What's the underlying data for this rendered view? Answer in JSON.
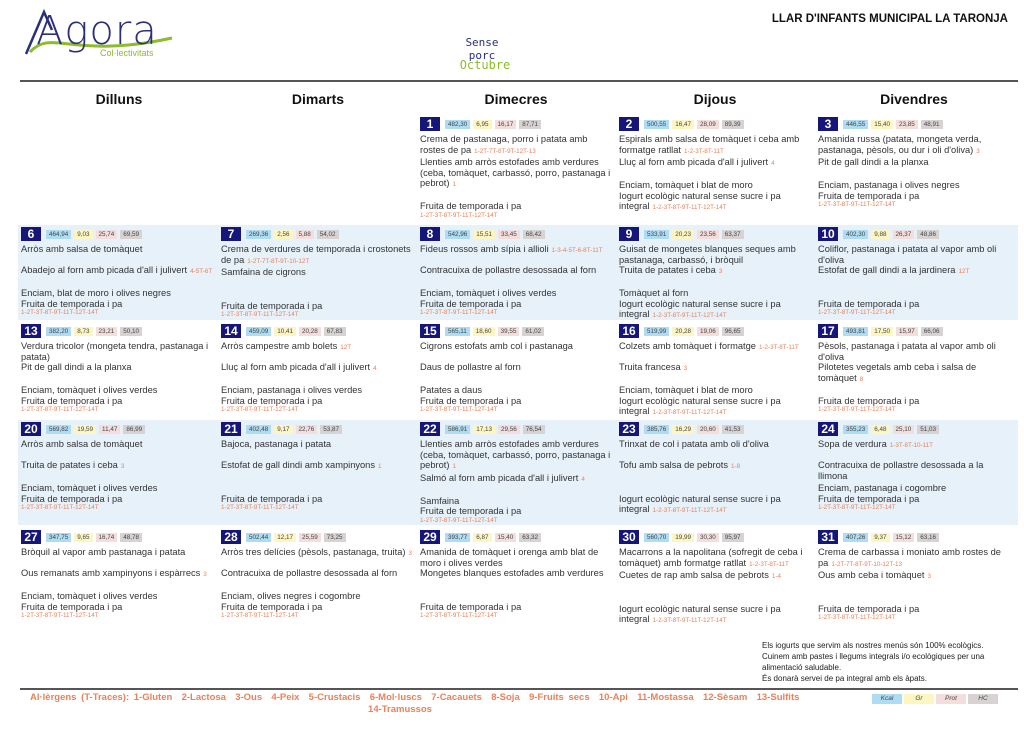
{
  "header": {
    "logo_text": "Agora",
    "logo_sub": "Col·lectivitats",
    "subtitle": "Sense porc",
    "month": "Octubre",
    "center": "LLAR D'INFANTS MUNICIPAL LA TARONJA"
  },
  "weekdays": [
    "Dilluns",
    "Dimarts",
    "Dimecres",
    "Dijous",
    "Divendres"
  ],
  "colors": {
    "day_box": "#15157a",
    "allergen": "#e8825a",
    "kcal": "#aedcf3",
    "gr": "#fdf6c3",
    "prot": "#f3dddd",
    "hc": "#d8d3d3",
    "row_shade": "#e6f1fa"
  },
  "weeks": [
    {
      "days": [
        null,
        null,
        {
          "day": "1",
          "kcal": "482,30",
          "gr": "6,95",
          "prot": "16,17",
          "hc": "87,71",
          "first": {
            "name": "Crema de pastanaga, porro i patata amb rostes de pa",
            "al": "1-2T-7T-8T-9T-12T-13"
          },
          "second": {
            "name": "Llenties amb arròs estofades amb verdures (ceba, tomàquet, carbassó, porro, pastanaga i pebrot)",
            "al": "1"
          },
          "side": {
            "name": "",
            "al": ""
          },
          "dessert": {
            "name": "Fruita de temporada i pa",
            "al": "1-2T-3T-8T-9T-11T-12T-14T"
          }
        },
        {
          "day": "2",
          "kcal": "500,55",
          "gr": "16,47",
          "prot": "28,09",
          "hc": "89,39",
          "first": {
            "name": "Espirals amb salsa de tomàquet i ceba amb formatge ratllat",
            "al": "1-2-3T-8T-11T"
          },
          "second": {
            "name": "Lluç al forn amb picada d'all i julivert",
            "al": "4"
          },
          "side": {
            "name": "Enciam, tomàquet i blat de moro",
            "al": ""
          },
          "dessert": {
            "name": "Iogurt ecològic natural sense sucre i pa integral",
            "al": "1-2-3T-8T-9T-11T-12T-14T"
          }
        },
        {
          "day": "3",
          "kcal": "446,55",
          "gr": "15,40",
          "prot": "23,85",
          "hc": "48,91",
          "first": {
            "name": "Amanida russa (patata, mongeta verda, pastanaga, pèsols, ou dur i oli d'oliva)",
            "al": "3"
          },
          "second": {
            "name": "Pit de gall dindi a la planxa",
            "al": ""
          },
          "side": {
            "name": "Enciam, pastanaga i olives negres",
            "al": ""
          },
          "dessert": {
            "name": "Fruita de temporada i pa",
            "al": "1-2T-3T-8T-9T-11T-12T-14T"
          }
        }
      ]
    },
    {
      "days": [
        {
          "day": "6",
          "kcal": "464,94",
          "gr": "9,03",
          "prot": "25,74",
          "hc": "69,59",
          "first": {
            "name": "Arròs amb salsa de tomàquet",
            "al": ""
          },
          "second": {
            "name": "Abadejo al forn amb picada d'all i julivert",
            "al": "4-5T-6T"
          },
          "side": {
            "name": "Enciam, blat de moro i olives negres",
            "al": ""
          },
          "dessert": {
            "name": "Fruita de temporada i pa",
            "al": "1-2T-3T-8T-9T-11T-12T-14T"
          }
        },
        {
          "day": "7",
          "kcal": "269,36",
          "gr": "2,56",
          "prot": "5,88",
          "hc": "54,02",
          "first": {
            "name": "Crema de verdures de temporada i crostonets de pa",
            "al": "1-2T-7T-8T-9T-10-12T"
          },
          "second": {
            "name": "Samfaina de cigrons",
            "al": ""
          },
          "side": {
            "name": "",
            "al": ""
          },
          "dessert": {
            "name": "Fruita de temporada i pa",
            "al": "1-2T-3T-8T-9T-11T-12T-14T"
          }
        },
        {
          "day": "8",
          "kcal": "542,96",
          "gr": "15,51",
          "prot": "33,45",
          "hc": "68,42",
          "first": {
            "name": "Fideus rossos amb sípia i allioli",
            "al": "1-3-4-5T-6-8T-11T"
          },
          "second": {
            "name": "Contracuixa de pollastre desossada al forn",
            "al": ""
          },
          "side": {
            "name": "Enciam, tomàquet i olives verdes",
            "al": ""
          },
          "dessert": {
            "name": "Fruita de temporada i pa",
            "al": "1-2T-3T-8T-9T-11T-12T-14T"
          }
        },
        {
          "day": "9",
          "kcal": "533,91",
          "gr": "20,23",
          "prot": "23,56",
          "hc": "63,37",
          "first": {
            "name": "Guisat de mongetes blanques seques amb pastanaga, carbassó, i bròquil",
            "al": ""
          },
          "second": {
            "name": "Truita de patates i ceba",
            "al": "3"
          },
          "side": {
            "name": "Tomàquet al forn",
            "al": ""
          },
          "dessert": {
            "name": "Iogurt ecològic natural sense sucre i pa integral",
            "al": "1-2-3T-8T-9T-11T-12T-14T"
          }
        },
        {
          "day": "10",
          "kcal": "402,30",
          "gr": "9,88",
          "prot": "26,37",
          "hc": "48,86",
          "first": {
            "name": "Coliflor, pastanaga i patata al vapor amb oli d'oliva",
            "al": ""
          },
          "second": {
            "name": "Estofat de gall dindi a la jardinera",
            "al": "12T"
          },
          "side": {
            "name": "",
            "al": ""
          },
          "dessert": {
            "name": "Fruita de temporada i pa",
            "al": "1-2T-3T-8T-9T-11T-12T-14T"
          }
        }
      ]
    },
    {
      "days": [
        {
          "day": "13",
          "kcal": "382,20",
          "gr": "8,73",
          "prot": "23,21",
          "hc": "50,10",
          "first": {
            "name": "Verdura tricolor (mongeta tendra, pastanaga i patata)",
            "al": ""
          },
          "second": {
            "name": "Pit de gall dindi a la planxa",
            "al": ""
          },
          "side": {
            "name": "Enciam, tomàquet i olives verdes",
            "al": ""
          },
          "dessert": {
            "name": "Fruita de temporada i pa",
            "al": "1-2T-3T-8T-9T-11T-12T-14T"
          }
        },
        {
          "day": "14",
          "kcal": "459,09",
          "gr": "10,41",
          "prot": "20,28",
          "hc": "67,83",
          "first": {
            "name": "Arròs campestre amb bolets",
            "al": "12T"
          },
          "second": {
            "name": "Lluç al forn amb picada d'all i julivert",
            "al": "4"
          },
          "side": {
            "name": "Enciam, pastanaga i olives verdes",
            "al": ""
          },
          "dessert": {
            "name": "Fruita de temporada i pa",
            "al": "1-2T-3T-8T-9T-11T-12T-14T"
          }
        },
        {
          "day": "15",
          "kcal": "565,11",
          "gr": "18,60",
          "prot": "39,55",
          "hc": "61,02",
          "first": {
            "name": "Cigrons estofats amb col i pastanaga",
            "al": ""
          },
          "second": {
            "name": "Daus de pollastre al forn",
            "al": ""
          },
          "side": {
            "name": "Patates a daus",
            "al": ""
          },
          "dessert": {
            "name": "Fruita de temporada i pa",
            "al": "1-2T-3T-8T-9T-11T-12T-14T"
          }
        },
        {
          "day": "16",
          "kcal": "519,99",
          "gr": "20,28",
          "prot": "19,06",
          "hc": "96,65",
          "first": {
            "name": "Colzets amb tomàquet i formatge",
            "al": "1-2-3T-8T-11T"
          },
          "second": {
            "name": "Truita francesa",
            "al": "3"
          },
          "side": {
            "name": "Enciam, tomàquet i blat de moro",
            "al": ""
          },
          "dessert": {
            "name": "Iogurt ecològic natural sense sucre i pa integral",
            "al": "1-2-3T-8T-9T-11T-12T-14T"
          }
        },
        {
          "day": "17",
          "kcal": "493,81",
          "gr": "17,50",
          "prot": "15,97",
          "hc": "66,06",
          "first": {
            "name": "Pèsols, pastanaga i patata al vapor amb oli d'oliva",
            "al": ""
          },
          "second": {
            "name": "Pilotetes vegetals amb ceba i salsa de tomàquet",
            "al": "8"
          },
          "side": {
            "name": "",
            "al": ""
          },
          "dessert": {
            "name": "Fruita de temporada i pa",
            "al": "1-2T-3T-8T-9T-11T-12T-14T"
          }
        }
      ]
    },
    {
      "days": [
        {
          "day": "20",
          "kcal": "569,82",
          "gr": "19,59",
          "prot": "11,47",
          "hc": "86,99",
          "first": {
            "name": "Arròs amb salsa de tomàquet",
            "al": ""
          },
          "second": {
            "name": "Truita de patates i ceba",
            "al": "3"
          },
          "side": {
            "name": "Enciam, tomàquet i olives verdes",
            "al": ""
          },
          "dessert": {
            "name": "Fruita de temporada i pa",
            "al": "1-2T-3T-8T-9T-11T-12T-14T"
          }
        },
        {
          "day": "21",
          "kcal": "402,48",
          "gr": "9,17",
          "prot": "22,76",
          "hc": "53,87",
          "first": {
            "name": "Bajoca, pastanaga i patata",
            "al": ""
          },
          "second": {
            "name": "Estofat de gall dindi amb xampinyons",
            "al": "1"
          },
          "side": {
            "name": "",
            "al": ""
          },
          "dessert": {
            "name": "Fruita de temporada i pa",
            "al": "1-2T-3T-8T-9T-11T-12T-14T"
          }
        },
        {
          "day": "22",
          "kcal": "586,91",
          "gr": "17,13",
          "prot": "29,56",
          "hc": "76,54",
          "first": {
            "name": "Llenties amb arròs estofades amb verdures (ceba, tomàquet, carbassó, porro, pastanaga i pebrot)",
            "al": "1"
          },
          "second": {
            "name": "Salmó al forn amb picada d'all i julivert",
            "al": "4"
          },
          "side": {
            "name": "Samfaina",
            "al": ""
          },
          "dessert": {
            "name": "Fruita de temporada i pa",
            "al": "1-2T-3T-8T-9T-11T-12T-14T"
          }
        },
        {
          "day": "23",
          "kcal": "385,76",
          "gr": "16,29",
          "prot": "20,60",
          "hc": "41,53",
          "first": {
            "name": "Trinxat de col i patata amb oli d'oliva",
            "al": ""
          },
          "second": {
            "name": "Tofu amb salsa de pebrots",
            "al": "1-8"
          },
          "side": {
            "name": "",
            "al": ""
          },
          "dessert": {
            "name": "Iogurt ecològic natural sense sucre i pa integral",
            "al": "1-2-3T-8T-9T-11T-12T-14T"
          }
        },
        {
          "day": "24",
          "kcal": "355,23",
          "gr": "6,48",
          "prot": "25,10",
          "hc": "51,03",
          "first": {
            "name": "Sopa de verdura",
            "al": "1-3T-8T-10-11T"
          },
          "second": {
            "name": "Contracuixa de pollastre desossada a la llimona",
            "al": ""
          },
          "side": {
            "name": "Enciam, pastanaga i cogombre",
            "al": ""
          },
          "dessert": {
            "name": "Fruita de temporada i pa",
            "al": "1-2T-3T-8T-9T-11T-12T-14T"
          }
        }
      ]
    },
    {
      "days": [
        {
          "day": "27",
          "kcal": "347,75",
          "gr": "9,65",
          "prot": "16,74",
          "hc": "48,78",
          "first": {
            "name": "Bròquil al vapor amb pastanaga i patata",
            "al": ""
          },
          "second": {
            "name": "Ous remanats amb xampinyons i espàrrecs",
            "al": "3"
          },
          "side": {
            "name": "Enciam, tomàquet i olives verdes",
            "al": ""
          },
          "dessert": {
            "name": "Fruita de temporada i pa",
            "al": "1-2T-3T-8T-9T-11T-12T-14T"
          }
        },
        {
          "day": "28",
          "kcal": "502,44",
          "gr": "12,17",
          "prot": "25,59",
          "hc": "73,25",
          "first": {
            "name": "Arròs tres delícies (pèsols, pastanaga, truita)",
            "al": "3"
          },
          "second": {
            "name": "Contracuixa de pollastre desossada al forn",
            "al": ""
          },
          "side": {
            "name": "Enciam, olives negres i cogombre",
            "al": ""
          },
          "dessert": {
            "name": "Fruita de temporada i pa",
            "al": "1-2T-3T-8T-9T-11T-12T-14T"
          }
        },
        {
          "day": "29",
          "kcal": "393,77",
          "gr": "6,87",
          "prot": "15,40",
          "hc": "63,32",
          "first": {
            "name": "Amanida de tomàquet i orenga amb blat de moro i olives verdes",
            "al": ""
          },
          "second": {
            "name": "Mongetes blanques estofades amb verdures",
            "al": ""
          },
          "side": {
            "name": "",
            "al": ""
          },
          "dessert": {
            "name": "Fruita de temporada i pa",
            "al": "1-2T-3T-8T-9T-11T-12T-14T"
          }
        },
        {
          "day": "30",
          "kcal": "560,70",
          "gr": "19,99",
          "prot": "30,30",
          "hc": "95,97",
          "first": {
            "name": "Macarrons a la napolitana (sofregit de ceba i tomàquet) amb formatge ratllat",
            "al": "1-2-3T-8T-11T"
          },
          "second": {
            "name": "Cuetes de rap amb salsa de pebrots",
            "al": "1-4"
          },
          "side": {
            "name": "",
            "al": ""
          },
          "dessert": {
            "name": "Iogurt ecològic natural sense sucre i pa integral",
            "al": "1-2-3T-8T-9T-11T-12T-14T"
          }
        },
        {
          "day": "31",
          "kcal": "407,26",
          "gr": "9,37",
          "prot": "15,12",
          "hc": "63,16",
          "first": {
            "name": "Crema de carbassa i moniato amb rostes de pa",
            "al": "1-2T-7T-8T-9T-10-12T-13"
          },
          "second": {
            "name": "Ous amb ceba i tomàquet",
            "al": "3"
          },
          "side": {
            "name": "",
            "al": ""
          },
          "dessert": {
            "name": "Fruita de temporada i pa",
            "al": "1-2T-3T-8T-9T-11T-12T-14T"
          }
        }
      ]
    }
  ],
  "notes": [
    "Els iogurts que servim als nostres menús són 100% ecològics.",
    "Cuinem amb pastes i llegums integrals i/o ecològiques per una alimentació saludable.",
    "És donarà servei de pa integral amb els àpats."
  ],
  "allergens": {
    "line1": "Al·lèrgens (T-Traces): 1-Gluten  2-Lactosa  3-Ous  4-Peix  5-Crustacis  6-Mol·luscs  7-Cacauets  8-Soja  9-Fruits secs  10-Api  11-Mostassa  12-Sèsam  13-Sulfits",
    "line2": "14-Tramussos"
  },
  "nutrition_legend": {
    "kcal": "Kcal",
    "gr": "Gr",
    "prot": "Prot",
    "hc": "HC"
  }
}
